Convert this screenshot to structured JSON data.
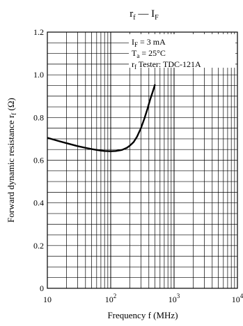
{
  "chart_data": {
    "type": "line",
    "title_main": "r",
    "title_main_sub": "f",
    "title_sep": " — ",
    "title_var": "I",
    "title_var_sub": "F",
    "xlabel": "Frequency  f  (MHz)",
    "ylabel": "Forward dynamic resistance  r",
    "ylabel_sub": "f",
    "ylabel_unit": "  (Ω)",
    "x_scale": "log",
    "xlim": [
      10,
      10000
    ],
    "ylim": [
      0,
      1.2
    ],
    "grid": true,
    "x_ticks": [
      {
        "value": 10,
        "base": "10",
        "exp": ""
      },
      {
        "value": 100,
        "base": "10",
        "exp": "2"
      },
      {
        "value": 1000,
        "base": "10",
        "exp": "3"
      },
      {
        "value": 10000,
        "base": "10",
        "exp": "4"
      }
    ],
    "y_ticks": [
      {
        "value": 0,
        "label": "0"
      },
      {
        "value": 0.2,
        "label": "0.2"
      },
      {
        "value": 0.4,
        "label": "0.4"
      },
      {
        "value": 0.6,
        "label": "0.6"
      },
      {
        "value": 0.8,
        "label": "0.8"
      },
      {
        "value": 1.0,
        "label": "1.0"
      },
      {
        "value": 1.2,
        "label": "1.2"
      }
    ],
    "annotations": [
      {
        "main": "I",
        "sub": "F",
        "rest": " = 3 mA"
      },
      {
        "main": "T",
        "sub": "a",
        "rest": " = 25°C"
      },
      {
        "main": "r",
        "sub": "f",
        "rest": " Tester: TDC-121A"
      }
    ],
    "series": [
      {
        "x": [
          10,
          15,
          20,
          30,
          40,
          50,
          60,
          70,
          80,
          100,
          120,
          150,
          180,
          200,
          230,
          260,
          300,
          340,
          380,
          420,
          460,
          500
        ],
        "y": [
          0.705,
          0.69,
          0.68,
          0.666,
          0.658,
          0.652,
          0.648,
          0.645,
          0.643,
          0.642,
          0.643,
          0.648,
          0.658,
          0.668,
          0.685,
          0.71,
          0.75,
          0.795,
          0.84,
          0.885,
          0.92,
          0.955
        ]
      }
    ]
  }
}
